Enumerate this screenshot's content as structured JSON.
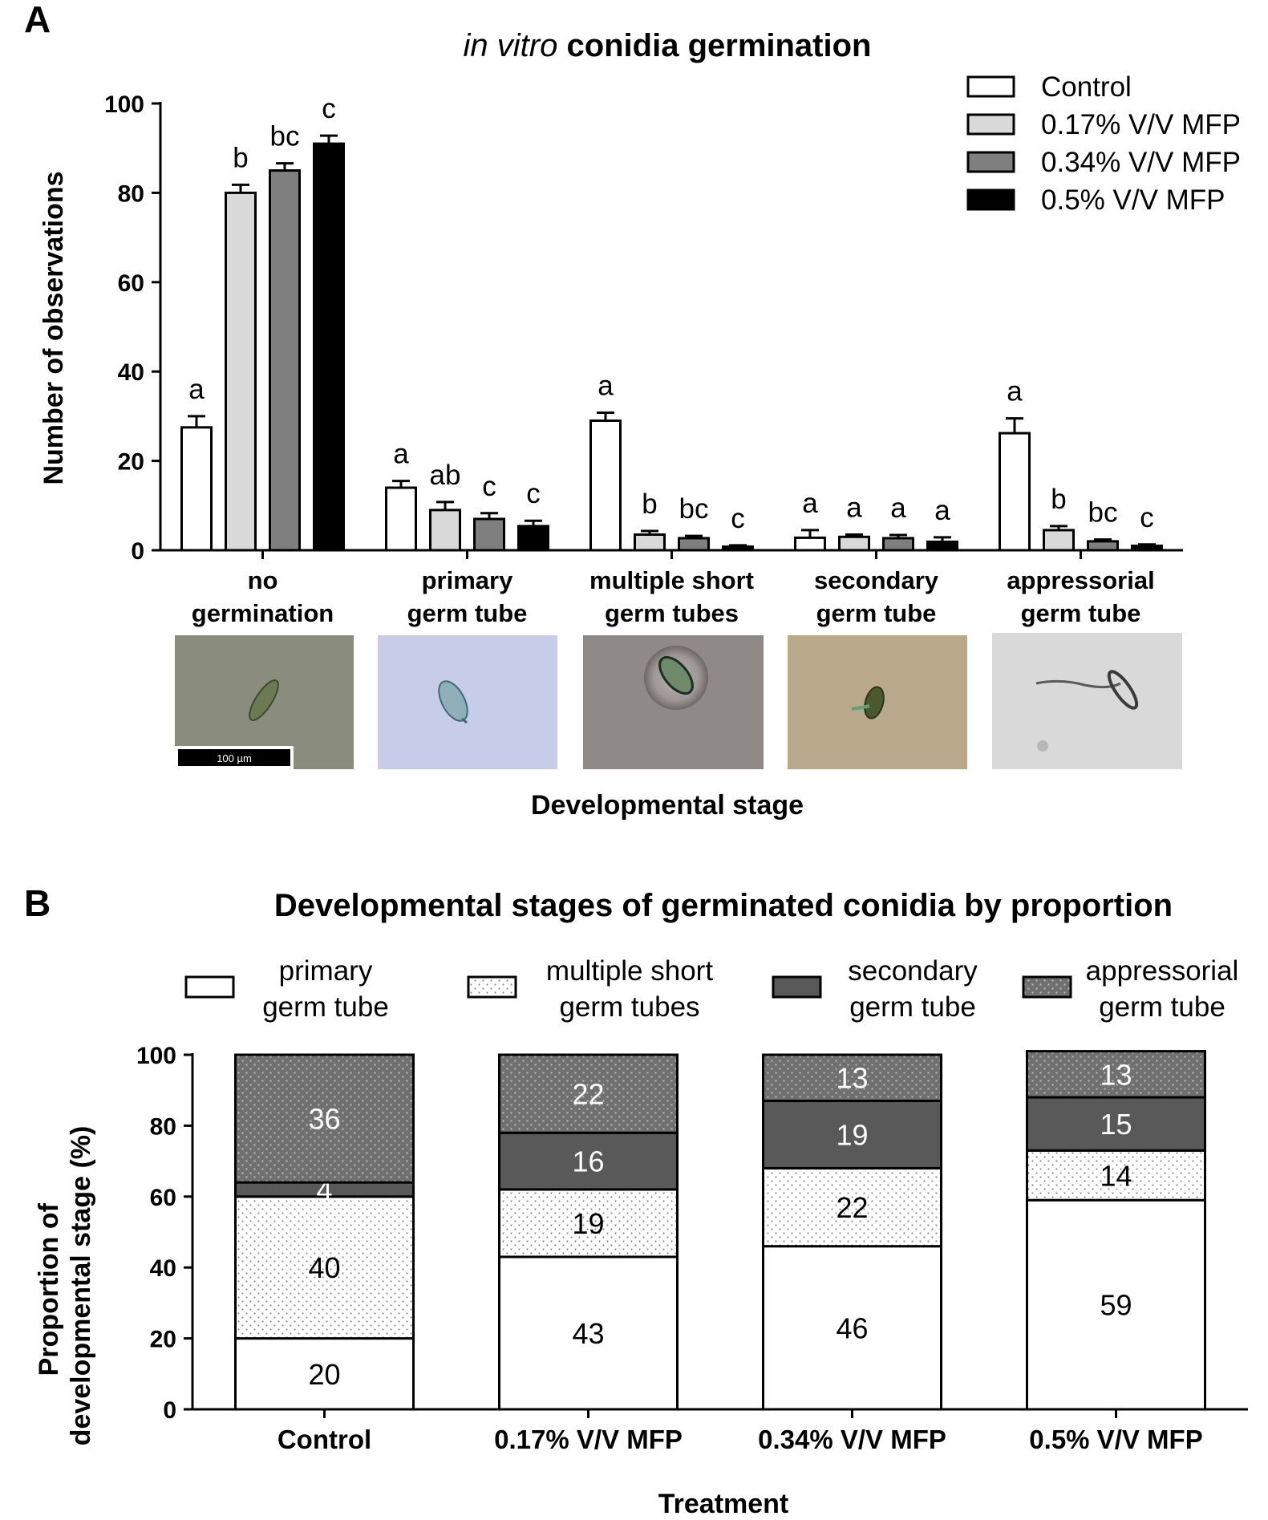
{
  "panel_a_letter": "A",
  "panel_b_letter": "B",
  "chart_data": [
    {
      "type": "bar",
      "title_italic": "in vitro",
      "title_rest": " conidia germination",
      "ylabel": "Number of observations",
      "xlabel": "Developmental stage",
      "ylim": [
        0,
        100
      ],
      "yticks": [
        0,
        20,
        40,
        60,
        80,
        100
      ],
      "categories": [
        [
          "no",
          "germination"
        ],
        [
          "primary",
          "germ tube"
        ],
        [
          "multiple short",
          "germ tubes"
        ],
        [
          "secondary",
          "germ tube"
        ],
        [
          "appressorial",
          "germ tube"
        ]
      ],
      "series": [
        {
          "name": "Control",
          "color": "#ffffff",
          "values": [
            27.5,
            14,
            29,
            2.8,
            26.2
          ],
          "errors": [
            2.5,
            1.5,
            1.8,
            1.7,
            3.3
          ],
          "letters": [
            "a",
            "a",
            "a",
            "a",
            "a"
          ]
        },
        {
          "name": "0.17% V/V MFP",
          "color": "#d9d9d9",
          "values": [
            80,
            9,
            3.5,
            3,
            4.5
          ],
          "errors": [
            1.8,
            1.8,
            0.8,
            0.5,
            0.9
          ],
          "letters": [
            "b",
            "ab",
            "b",
            "a",
            "b"
          ]
        },
        {
          "name": "0.34% V/V MFP",
          "color": "#7f7f7f",
          "values": [
            85,
            7,
            2.7,
            2.7,
            2
          ],
          "errors": [
            1.6,
            1.3,
            0.5,
            0.7,
            0.4
          ],
          "letters": [
            "bc",
            "c",
            "bc",
            "a",
            "bc"
          ]
        },
        {
          "name": "0.5% V/V MFP",
          "color": "#000000",
          "values": [
            91,
            5.4,
            0.8,
            1.9,
            1
          ],
          "errors": [
            1.8,
            1.2,
            0.3,
            1.0,
            0.3
          ],
          "letters": [
            "c",
            "c",
            "c",
            "a",
            "c"
          ]
        }
      ],
      "legend_position": "top-right",
      "micrograph_scale_label": "100 µm"
    },
    {
      "type": "bar",
      "stacked": true,
      "title": "Developmental stages of germinated conidia by proportion",
      "ylabel": [
        "Proportion of",
        "developmental stage (%)"
      ],
      "xlabel": "Treatment",
      "ylim": [
        0,
        100
      ],
      "yticks": [
        0,
        20,
        40,
        60,
        80,
        100
      ],
      "categories": [
        "Control",
        "0.17% V/V MFP",
        "0.34% V/V MFP",
        "0.5% V/V MFP"
      ],
      "series": [
        {
          "name": [
            "primary",
            "germ tube"
          ],
          "fill": "white",
          "values": [
            20,
            43,
            46,
            59
          ]
        },
        {
          "name": [
            "multiple short",
            "germ tubes"
          ],
          "fill": "dots-light",
          "values": [
            40,
            19,
            22,
            14
          ]
        },
        {
          "name": [
            "secondary",
            "germ tube"
          ],
          "fill": "dark",
          "values": [
            4,
            16,
            19,
            15
          ]
        },
        {
          "name": [
            "appressorial",
            "germ tube"
          ],
          "fill": "dots-dark",
          "values": [
            36,
            22,
            13,
            13
          ]
        }
      ],
      "legend_position": "top"
    }
  ]
}
